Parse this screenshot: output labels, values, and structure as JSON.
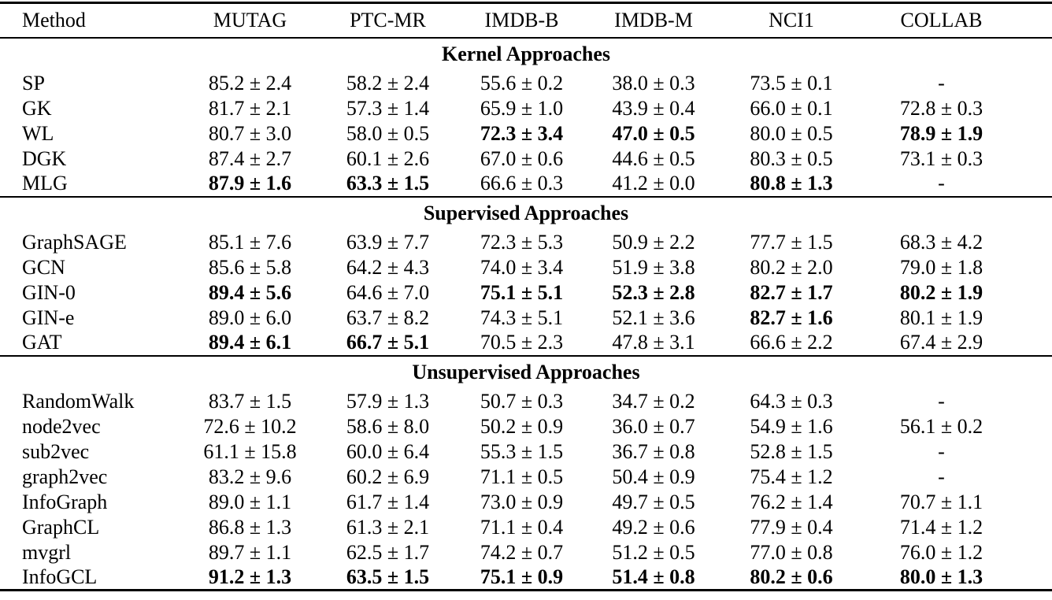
{
  "colors": {
    "background": "#ffffff",
    "text": "#000000",
    "rule": "#000000"
  },
  "table": {
    "columns": [
      "Method",
      "MUTAG",
      "PTC-MR",
      "IMDB-B",
      "IMDB-M",
      "NCI1",
      "COLLAB"
    ],
    "sections": [
      {
        "title": "Kernel Approaches",
        "rows": [
          {
            "method": "SP",
            "values": [
              "85.2 ± 2.4",
              "58.2 ± 2.4",
              "55.6 ± 0.2",
              "38.0 ± 0.3",
              "73.5 ± 0.1",
              "-"
            ],
            "bold": [
              false,
              false,
              false,
              false,
              false,
              false
            ]
          },
          {
            "method": "GK",
            "values": [
              "81.7 ± 2.1",
              "57.3 ± 1.4",
              "65.9 ± 1.0",
              "43.9 ± 0.4",
              "66.0 ± 0.1",
              "72.8 ± 0.3"
            ],
            "bold": [
              false,
              false,
              false,
              false,
              false,
              false
            ]
          },
          {
            "method": "WL",
            "values": [
              "80.7 ± 3.0",
              "58.0 ± 0.5",
              "72.3 ± 3.4",
              "47.0 ± 0.5",
              "80.0 ± 0.5",
              "78.9 ± 1.9"
            ],
            "bold": [
              false,
              false,
              true,
              true,
              false,
              true
            ]
          },
          {
            "method": "DGK",
            "values": [
              "87.4 ± 2.7",
              "60.1 ± 2.6",
              "67.0 ± 0.6",
              "44.6 ± 0.5",
              "80.3 ± 0.5",
              "73.1 ± 0.3"
            ],
            "bold": [
              false,
              false,
              false,
              false,
              false,
              false
            ]
          },
          {
            "method": "MLG",
            "values": [
              "87.9 ± 1.6",
              "63.3 ± 1.5",
              "66.6 ± 0.3",
              "41.2 ± 0.0",
              "80.8 ± 1.3",
              "-"
            ],
            "bold": [
              true,
              true,
              false,
              false,
              true,
              false
            ]
          }
        ]
      },
      {
        "title": "Supervised Approaches",
        "rows": [
          {
            "method": "GraphSAGE",
            "values": [
              "85.1 ± 7.6",
              "63.9 ± 7.7",
              "72.3 ± 5.3",
              "50.9 ± 2.2",
              "77.7 ± 1.5",
              "68.3 ± 4.2"
            ],
            "bold": [
              false,
              false,
              false,
              false,
              false,
              false
            ]
          },
          {
            "method": "GCN",
            "values": [
              "85.6 ± 5.8",
              "64.2 ± 4.3",
              "74.0 ± 3.4",
              "51.9 ± 3.8",
              "80.2 ± 2.0",
              "79.0 ± 1.8"
            ],
            "bold": [
              false,
              false,
              false,
              false,
              false,
              false
            ]
          },
          {
            "method": "GIN-0",
            "values": [
              "89.4 ± 5.6",
              "64.6 ± 7.0",
              "75.1 ± 5.1",
              "52.3 ± 2.8",
              "82.7 ± 1.7",
              "80.2 ± 1.9"
            ],
            "bold": [
              true,
              false,
              true,
              true,
              true,
              true
            ]
          },
          {
            "method": "GIN-e",
            "values": [
              "89.0 ± 6.0",
              "63.7 ± 8.2",
              "74.3 ± 5.1",
              "52.1 ± 3.6",
              "82.7 ± 1.6",
              "80.1 ± 1.9"
            ],
            "bold": [
              false,
              false,
              false,
              false,
              true,
              false
            ]
          },
          {
            "method": "GAT",
            "values": [
              "89.4 ± 6.1",
              "66.7 ± 5.1",
              "70.5 ± 2.3",
              "47.8 ± 3.1",
              "66.6 ± 2.2",
              "67.4 ± 2.9"
            ],
            "bold": [
              true,
              true,
              false,
              false,
              false,
              false
            ]
          }
        ]
      },
      {
        "title": "Unsupervised Approaches",
        "rows": [
          {
            "method": "RandomWalk",
            "values": [
              "83.7 ± 1.5",
              "57.9 ± 1.3",
              "50.7 ± 0.3",
              "34.7 ± 0.2",
              "64.3 ± 0.3",
              "-"
            ],
            "bold": [
              false,
              false,
              false,
              false,
              false,
              false
            ]
          },
          {
            "method": "node2vec",
            "values": [
              "72.6 ± 10.2",
              "58.6 ± 8.0",
              "50.2 ± 0.9",
              "36.0 ± 0.7",
              "54.9 ± 1.6",
              "56.1 ± 0.2"
            ],
            "bold": [
              false,
              false,
              false,
              false,
              false,
              false
            ]
          },
          {
            "method": "sub2vec",
            "values": [
              "61.1 ± 15.8",
              "60.0 ± 6.4",
              "55.3 ± 1.5",
              "36.7 ± 0.8",
              "52.8 ± 1.5",
              "-"
            ],
            "bold": [
              false,
              false,
              false,
              false,
              false,
              false
            ]
          },
          {
            "method": "graph2vec",
            "values": [
              "83.2 ± 9.6",
              "60.2 ± 6.9",
              "71.1 ± 0.5",
              "50.4 ± 0.9",
              "75.4 ± 1.2",
              "-"
            ],
            "bold": [
              false,
              false,
              false,
              false,
              false,
              false
            ]
          },
          {
            "method": "InfoGraph",
            "values": [
              "89.0 ± 1.1",
              "61.7 ± 1.4",
              "73.0 ± 0.9",
              "49.7 ± 0.5",
              "76.2 ± 1.4",
              "70.7 ± 1.1"
            ],
            "bold": [
              false,
              false,
              false,
              false,
              false,
              false
            ]
          },
          {
            "method": "GraphCL",
            "values": [
              "86.8 ± 1.3",
              "61.3 ± 2.1",
              "71.1 ± 0.4",
              "49.2 ± 0.6",
              "77.9 ± 0.4",
              "71.4 ± 1.2"
            ],
            "bold": [
              false,
              false,
              false,
              false,
              false,
              false
            ]
          },
          {
            "method": "mvgrl",
            "values": [
              "89.7 ± 1.1",
              "62.5 ± 1.7",
              "74.2 ± 0.7",
              "51.2 ± 0.5",
              "77.0 ± 0.8",
              "76.0 ± 1.2"
            ],
            "bold": [
              false,
              false,
              false,
              false,
              false,
              false
            ]
          },
          {
            "method": "InfoGCL",
            "values": [
              "91.2 ± 1.3",
              "63.5 ± 1.5",
              "75.1 ± 0.9",
              "51.4 ± 0.8",
              "80.2 ± 0.6",
              "80.0 ± 1.3"
            ],
            "bold": [
              true,
              true,
              true,
              true,
              true,
              true
            ]
          }
        ]
      }
    ]
  }
}
